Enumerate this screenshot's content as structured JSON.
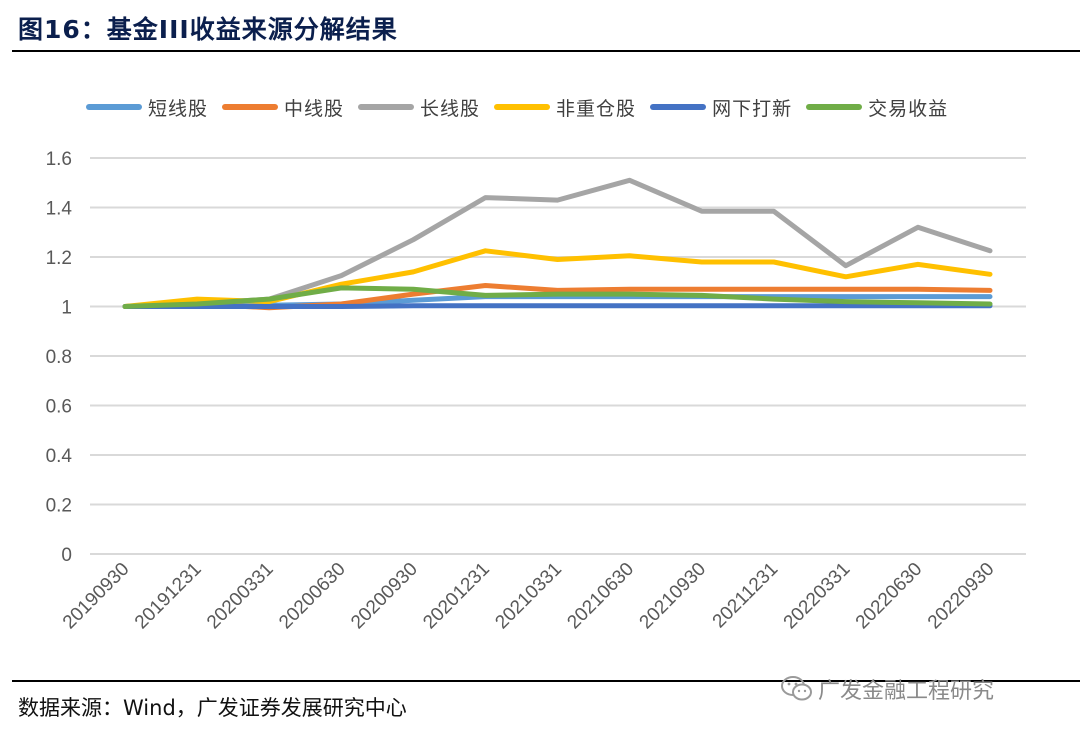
{
  "figure": {
    "title": "图16：基金III收益来源分解结果",
    "source": "数据来源：Wind，广发证券发展研究中心",
    "watermark": "广发金融工程研究"
  },
  "chart_data": {
    "type": "line",
    "title": "",
    "xlabel": "",
    "ylabel": "",
    "ylim": [
      0,
      1.6
    ],
    "yticks": [
      "0",
      "0.2",
      "0.4",
      "0.6",
      "0.8",
      "1",
      "1.2",
      "1.4",
      "1.6"
    ],
    "grid": true,
    "legend_position": "top",
    "x": [
      "20190930",
      "20191231",
      "20200331",
      "20200630",
      "20200930",
      "20201231",
      "20210331",
      "20210630",
      "20210930",
      "20211231",
      "20220331",
      "20220630",
      "20220930"
    ],
    "series": [
      {
        "name": "短线股",
        "color": "#5b9bd5",
        "values": [
          1.0,
          1.0,
          1.005,
          1.01,
          1.025,
          1.04,
          1.04,
          1.04,
          1.04,
          1.04,
          1.04,
          1.04,
          1.04
        ]
      },
      {
        "name": "中线股",
        "color": "#ed7d31",
        "values": [
          1.0,
          1.01,
          0.995,
          1.01,
          1.05,
          1.085,
          1.065,
          1.07,
          1.07,
          1.07,
          1.07,
          1.07,
          1.065
        ]
      },
      {
        "name": "长线股",
        "color": "#a5a5a5",
        "values": [
          1.0,
          1.01,
          1.03,
          1.125,
          1.27,
          1.44,
          1.43,
          1.51,
          1.385,
          1.385,
          1.165,
          1.32,
          1.225
        ]
      },
      {
        "name": "非重仓股",
        "color": "#ffc000",
        "values": [
          1.0,
          1.03,
          1.02,
          1.09,
          1.14,
          1.225,
          1.19,
          1.205,
          1.18,
          1.18,
          1.12,
          1.17,
          1.13
        ]
      },
      {
        "name": "网下打新",
        "color": "#4472c4",
        "values": [
          1.0,
          1.0,
          1.0,
          1.0,
          1.003,
          1.003,
          1.003,
          1.003,
          1.003,
          1.003,
          1.003,
          1.003,
          1.003
        ]
      },
      {
        "name": "交易收益",
        "color": "#70ad47",
        "values": [
          1.0,
          1.01,
          1.03,
          1.075,
          1.07,
          1.045,
          1.05,
          1.05,
          1.045,
          1.03,
          1.02,
          1.015,
          1.01
        ]
      }
    ]
  }
}
